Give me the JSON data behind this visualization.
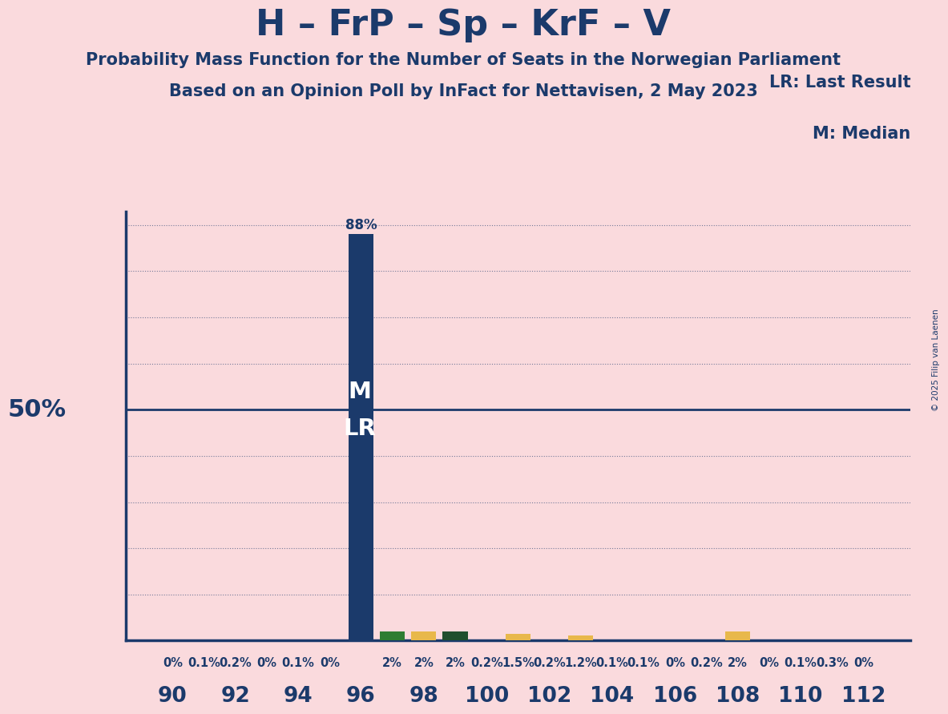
{
  "title": "H – FrP – Sp – KrF – V",
  "subtitle1": "Probability Mass Function for the Number of Seats in the Norwegian Parliament",
  "subtitle2": "Based on an Opinion Poll by InFact for Nettavisen, 2 May 2023",
  "copyright": "© 2025 Filip van Laenen",
  "background_color": "#FADADD",
  "text_color": "#1B3A6B",
  "ylabel_50": "50%",
  "lr_label": "LR",
  "m_label": "M",
  "lr_last_result": "LR: Last Result",
  "m_median": "M: Median",
  "seats": [
    90,
    91,
    92,
    93,
    94,
    95,
    96,
    97,
    98,
    99,
    100,
    101,
    102,
    103,
    104,
    105,
    106,
    107,
    108,
    109,
    110,
    111,
    112
  ],
  "values": [
    0.0,
    0.1,
    0.2,
    0.0,
    0.1,
    0.0,
    88.0,
    2.0,
    2.0,
    2.0,
    0.2,
    1.5,
    0.2,
    1.2,
    0.1,
    0.1,
    0.0,
    0.2,
    2.0,
    0.0,
    0.1,
    0.3,
    0.0
  ],
  "bar_colors": [
    "#1B3A6B",
    "#1B3A6B",
    "#1B3A6B",
    "#1B3A6B",
    "#1B3A6B",
    "#1B3A6B",
    "#1B3A6B",
    "#2E7D32",
    "#E8B84B",
    "#1F4F2E",
    "#1B3A6B",
    "#E8B84B",
    "#1B3A6B",
    "#E8B84B",
    "#1B3A6B",
    "#1B3A6B",
    "#1B3A6B",
    "#1B3A6B",
    "#E8B84B",
    "#1B3A6B",
    "#1B3A6B",
    "#1B3A6B",
    "#1B3A6B"
  ],
  "value_labels": [
    "0%",
    "0.1%",
    "0.2%",
    "0%",
    "0.1%",
    "0%",
    "88%",
    "2%",
    "2%",
    "2%",
    "0.2%",
    "1.5%",
    "0.2%",
    "1.2%",
    "0.1%",
    "0.1%",
    "0%",
    "0.2%",
    "2%",
    "0%",
    "0.1%",
    "0.3%",
    "0%"
  ],
  "median_seat": 96,
  "lr_seat": 96,
  "xlim_min": 88.5,
  "xlim_max": 113.5,
  "ylim_min": 0,
  "ylim_max": 93,
  "fifty_pct_y": 50,
  "bar_width": 0.8,
  "grid_lines": [
    10,
    20,
    30,
    40,
    60,
    70,
    80,
    90
  ]
}
